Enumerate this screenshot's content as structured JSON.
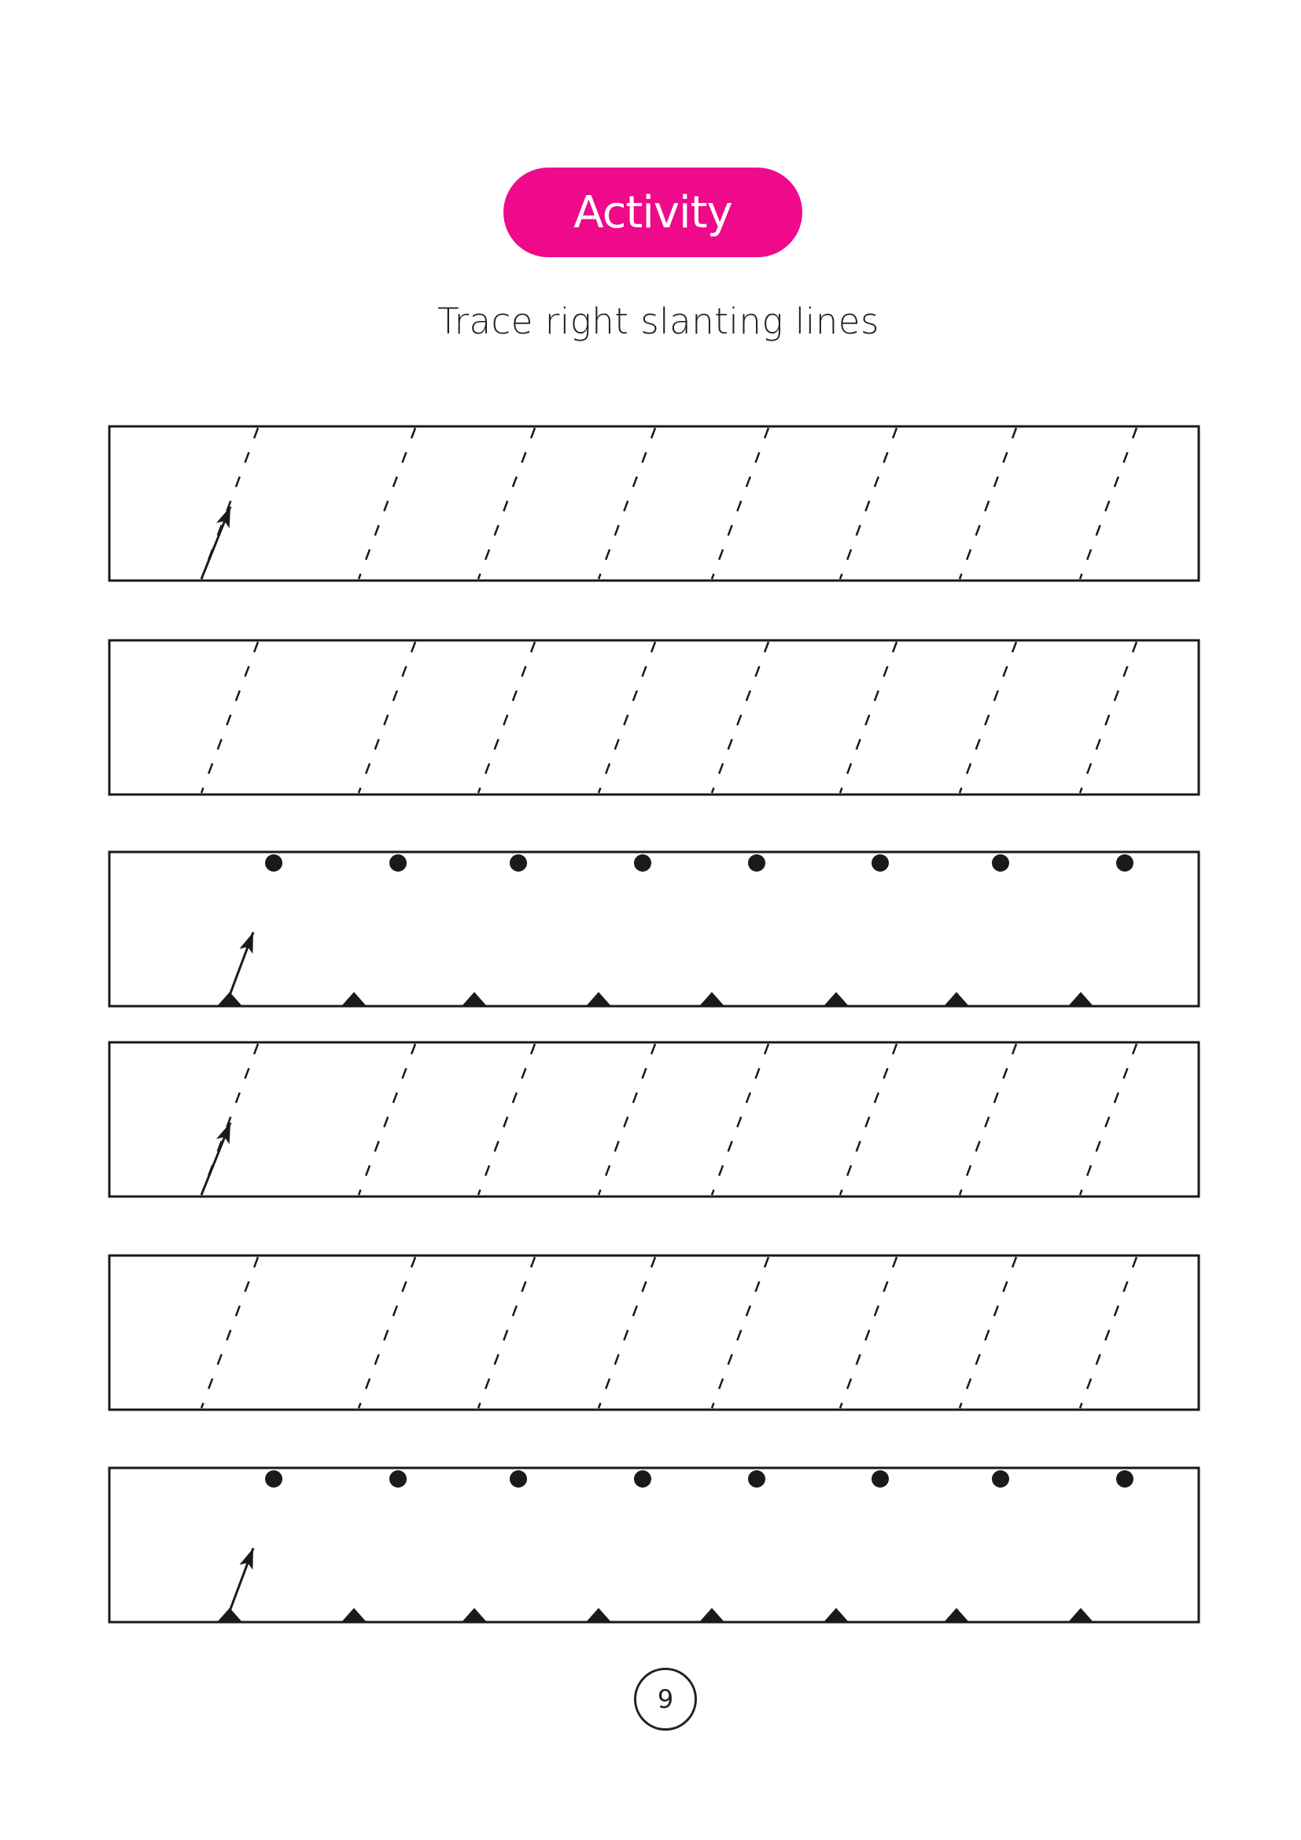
{
  "activity": {
    "label": "Activity",
    "color": "#ee0a8a"
  },
  "instruction": "Trace right slanting lines",
  "page_number": "9",
  "rows": [
    {
      "kind": "dashed",
      "start_arrow": true
    },
    {
      "kind": "dashed",
      "start_arrow": false
    },
    {
      "kind": "dots",
      "start_arrow": true
    },
    {
      "kind": "dashed",
      "start_arrow": true
    },
    {
      "kind": "dashed",
      "start_arrow": false
    },
    {
      "kind": "dots",
      "start_arrow": true
    }
  ],
  "ink_color": "#1a1a1a"
}
